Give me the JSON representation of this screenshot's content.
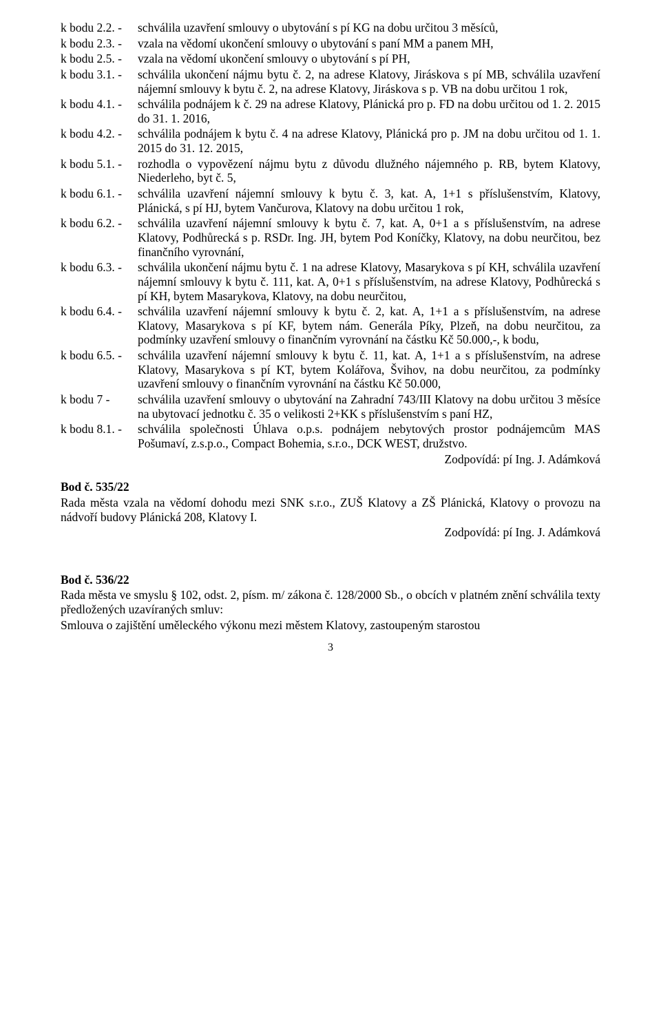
{
  "fontFamily": "Times New Roman",
  "baseFontSizePt": 13,
  "textColor": "#000000",
  "bgColor": "#ffffff",
  "pageWidth": 960,
  "pageHeight": 1486,
  "rows": [
    {
      "key": "k bodu 2.2. -",
      "body": "schválila uzavření smlouvy o ubytování s pí KG na dobu určitou 3 měsíců,"
    },
    {
      "key": "k bodu 2.3. -",
      "body": "vzala na vědomí ukončení smlouvy o ubytování s paní MM a panem MH,"
    },
    {
      "key": "k bodu 2.5. -",
      "body": "vzala na vědomí ukončení smlouvy o ubytování s pí PH,"
    },
    {
      "key": "k bodu 3.1. -",
      "body": "schválila ukončení nájmu bytu č. 2, na adrese Klatovy, Jiráskova s pí MB, schválila uzavření nájemní smlouvy k bytu č. 2, na adrese Klatovy, Jiráskova s p. VB na dobu určitou 1 rok,"
    },
    {
      "key": "k bodu 4.1. -",
      "body": "schválila podnájem k č. 29 na adrese Klatovy, Plánická pro p. FD na dobu určitou od 1. 2. 2015 do 31. 1. 2016,"
    },
    {
      "key": "k bodu 4.2. -",
      "body": "schválila podnájem k bytu č. 4 na adrese Klatovy, Plánická pro p. JM na dobu určitou od 1. 1. 2015 do 31. 12. 2015,"
    },
    {
      "key": "k bodu 5.1. -",
      "body": "rozhodla o vypovězení nájmu bytu z důvodu dlužného nájemného p. RB, bytem Klatovy, Niederleho, byt č. 5,"
    },
    {
      "key": "k bodu 6.1. -",
      "body": "schválila uzavření nájemní smlouvy k bytu č. 3, kat. A, 1+1 s příslušenstvím, Klatovy, Plánická, s pí HJ, bytem Vančurova, Klatovy na dobu určitou 1 rok,"
    },
    {
      "key": "k bodu 6.2. -",
      "body": "schválila uzavření nájemní smlouvy k bytu č. 7, kat. A, 0+1 a s příslušenstvím, na adrese Klatovy, Podhůrecká s p. RSDr. Ing. JH, bytem Pod Koníčky, Klatovy, na dobu neurčitou, bez finančního vyrovnání,"
    },
    {
      "key": "k bodu 6.3. -",
      "body": "schválila ukončení nájmu bytu č. 1 na adrese Klatovy, Masarykova s pí KH, schválila uzavření nájemní smlouvy k bytu č. 111, kat. A, 0+1 s příslušenstvím, na adrese Klatovy, Podhůrecká s pí KH, bytem Masarykova, Klatovy, na dobu neurčitou,"
    },
    {
      "key": "k bodu 6.4. -",
      "body": "schválila uzavření nájemní smlouvy k bytu č. 2, kat. A, 1+1 a s příslušenstvím, na adrese Klatovy, Masarykova s pí KF, bytem nám. Generála Píky, Plzeň, na dobu neurčitou, za podmínky uzavření smlouvy o finančním vyrovnání na částku Kč 50.000,-, k bodu,"
    },
    {
      "key": "k bodu 6.5. -",
      "body": "schválila uzavření nájemní smlouvy k bytu č. 11, kat. A, 1+1 a s příslušenstvím, na adrese Klatovy, Masarykova s pí KT, bytem Kolářova, Švihov, na dobu neurčitou, za podmínky uzavření smlouvy o finančním vyrovnání na částku Kč 50.000,"
    },
    {
      "key": "k bodu 7 -",
      "body": "schválila uzavření smlouvy o ubytování na Zahradní 743/III Klatovy na dobu určitou 3 měsíce na ubytovací jednotku č. 35 o velikosti 2+KK s příslušenstvím s paní HZ,"
    },
    {
      "key": "k bodu 8.1. -",
      "body": "schválila společnosti Úhlava o.p.s. podnájem nebytových prostor podnájemcům MAS Pošumaví, z.s.p.o., Compact Bohemia, s.r.o., DCK WEST, družstvo."
    }
  ],
  "resp1": "Zodpovídá: pí Ing. J. Adámková",
  "sec535_title": "Bod č. 535/22",
  "sec535_body": "Rada města vzala na vědomí dohodu mezi SNK s.r.o., ZUŠ Klatovy a ZŠ Plánická, Klatovy o provozu na nádvoří budovy Plánická 208, Klatovy I.",
  "resp2": "Zodpovídá: pí Ing. J. Adámková",
  "sec536_title": "Bod č. 536/22",
  "sec536_body1": "Rada města ve smyslu § 102, odst. 2, písm. m/ zákona č. 128/2000 Sb., o obcích v platném znění schválila texty předložených uzavíraných smluv:",
  "sec536_body2": "Smlouva o zajištění uměleckého výkonu mezi městem Klatovy, zastoupeným starostou",
  "pageNumber": "3"
}
